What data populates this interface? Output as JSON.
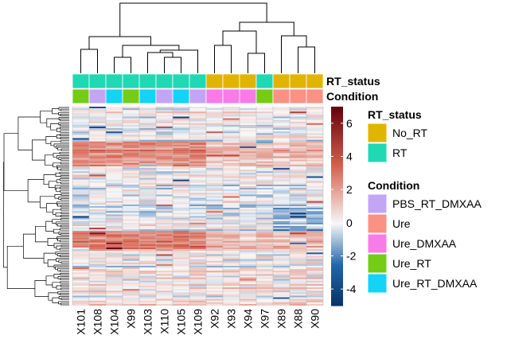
{
  "chart_data": {
    "type": "heatmap",
    "title": "",
    "columns": [
      "X101",
      "X108",
      "X104",
      "X99",
      "X103",
      "X110",
      "X105",
      "X109",
      "X92",
      "X93",
      "X94",
      "X97",
      "X89",
      "X88",
      "X90"
    ],
    "annotation_rows": [
      {
        "name": "RT_status",
        "values": [
          "RT",
          "RT",
          "RT",
          "RT",
          "RT",
          "RT",
          "RT",
          "RT",
          "No_RT",
          "No_RT",
          "No_RT",
          "RT",
          "No_RT",
          "No_RT",
          "No_RT"
        ]
      },
      {
        "name": "Condition",
        "values": [
          "Ure_RT",
          "PBS_RT_DMXAA",
          "Ure_RT_DMXAA",
          "Ure_RT",
          "Ure_RT_DMXAA",
          "PBS_RT_DMXAA",
          "Ure_RT_DMXAA",
          "PBS_RT_DMXAA",
          "Ure_DMXAA",
          "Ure_DMXAA",
          "Ure_DMXAA",
          "Ure_RT",
          "Ure",
          "Ure",
          "Ure"
        ]
      }
    ],
    "color_scale": {
      "ticks": [
        -4,
        -2,
        0,
        2,
        4,
        6
      ],
      "range": [
        -5,
        7
      ],
      "low": "#08306b",
      "mid": "#f7f7f7",
      "high": "#67000d"
    },
    "legends": [
      {
        "title": "RT_status",
        "items": [
          {
            "label": "No_RT",
            "color": "#E0B500"
          },
          {
            "label": "RT",
            "color": "#1ED9B4"
          }
        ]
      },
      {
        "title": "Condition",
        "items": [
          {
            "label": "PBS_RT_DMXAA",
            "color": "#C3A5F5"
          },
          {
            "label": "Ure",
            "color": "#F99185"
          },
          {
            "label": "Ure_DMXAA",
            "color": "#F77BE8"
          },
          {
            "label": "Ure_RT",
            "color": "#74CC17"
          },
          {
            "label": "Ure_RT_DMXAA",
            "color": "#12D4F5"
          }
        ]
      }
    ],
    "row_count": 120
  }
}
